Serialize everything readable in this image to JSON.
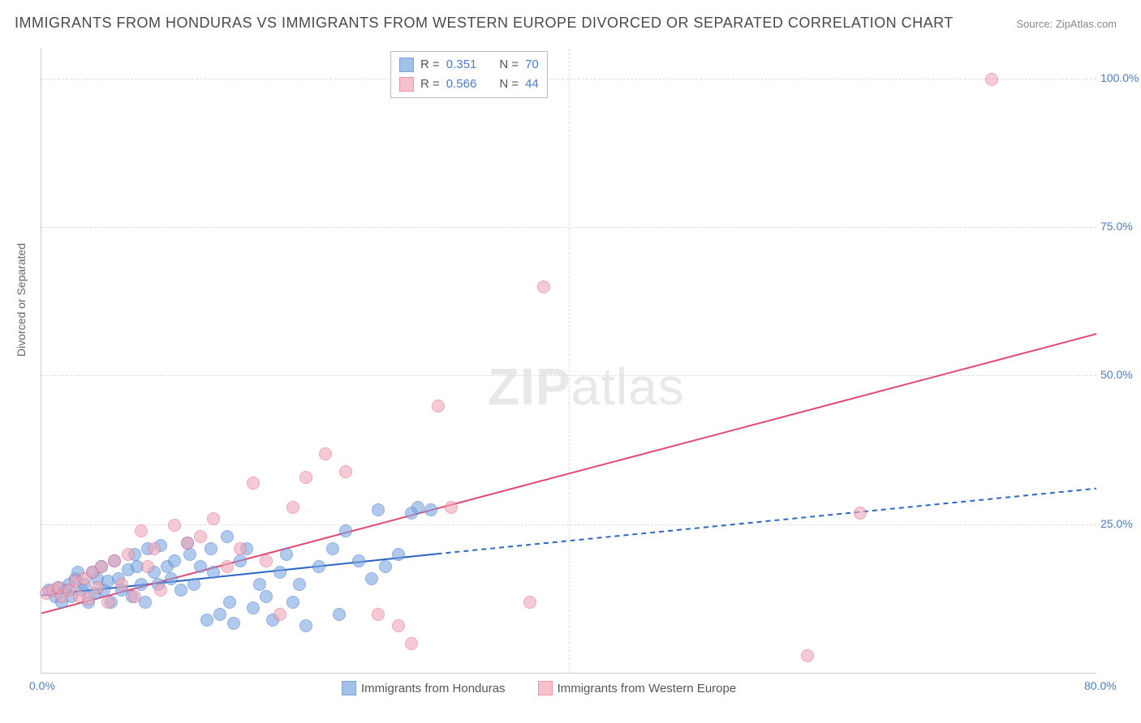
{
  "title": "IMMIGRANTS FROM HONDURAS VS IMMIGRANTS FROM WESTERN EUROPE DIVORCED OR SEPARATED CORRELATION CHART",
  "source": "Source: ZipAtlas.com",
  "watermark_part1": "ZIP",
  "watermark_part2": "atlas",
  "ylabel": "Divorced or Separated",
  "chart": {
    "type": "scatter",
    "xlim": [
      0,
      80
    ],
    "ylim": [
      0,
      105
    ],
    "xticks": [
      {
        "v": 0,
        "l": "0.0%"
      },
      {
        "v": 80,
        "l": "80.0%"
      }
    ],
    "yticks": [
      {
        "v": 25,
        "l": "25.0%"
      },
      {
        "v": 50,
        "l": "50.0%"
      },
      {
        "v": 75,
        "l": "75.0%"
      },
      {
        "v": 100,
        "l": "100.0%"
      }
    ],
    "x_gridlines": [
      40
    ],
    "background_color": "#ffffff",
    "grid_color": "#dddddd",
    "series": [
      {
        "name": "Immigrants from Honduras",
        "color_fill": "#7ba7e0",
        "color_stroke": "#4a7bd0",
        "fill_opacity": 0.35,
        "marker_radius": 7,
        "R": "0.351",
        "N": "70",
        "trendline": {
          "x1": 0,
          "y1": 13,
          "x2": 30,
          "y2": 20,
          "color": "#2e66c4",
          "width": 2,
          "dash": "none",
          "ext_x2": 80,
          "ext_y2": 31,
          "ext_dash": "6,5"
        },
        "points": [
          [
            0.5,
            14
          ],
          [
            1,
            13
          ],
          [
            1.2,
            14.5
          ],
          [
            1.5,
            12
          ],
          [
            1.8,
            14
          ],
          [
            2,
            15
          ],
          [
            2.2,
            13
          ],
          [
            2.5,
            16
          ],
          [
            2.7,
            17
          ],
          [
            3,
            14
          ],
          [
            3.2,
            15
          ],
          [
            3.5,
            12
          ],
          [
            3.8,
            17
          ],
          [
            4,
            13.5
          ],
          [
            4.2,
            16
          ],
          [
            4.5,
            18
          ],
          [
            4.7,
            14
          ],
          [
            5,
            15.5
          ],
          [
            5.2,
            12
          ],
          [
            5.5,
            19
          ],
          [
            5.8,
            16
          ],
          [
            6,
            14
          ],
          [
            6.5,
            17.5
          ],
          [
            6.8,
            13
          ],
          [
            7,
            20
          ],
          [
            7.2,
            18
          ],
          [
            7.5,
            15
          ],
          [
            7.8,
            12
          ],
          [
            8,
            21
          ],
          [
            8.5,
            17
          ],
          [
            8.8,
            15
          ],
          [
            9,
            21.5
          ],
          [
            9.5,
            18
          ],
          [
            9.8,
            16
          ],
          [
            10,
            19
          ],
          [
            10.5,
            14
          ],
          [
            11,
            22
          ],
          [
            11.2,
            20
          ],
          [
            11.5,
            15
          ],
          [
            12,
            18
          ],
          [
            12.5,
            9
          ],
          [
            12.8,
            21
          ],
          [
            13,
            17
          ],
          [
            13.5,
            10
          ],
          [
            14,
            23
          ],
          [
            14.2,
            12
          ],
          [
            14.5,
            8.5
          ],
          [
            15,
            19
          ],
          [
            15.5,
            21
          ],
          [
            16,
            11
          ],
          [
            16.5,
            15
          ],
          [
            17,
            13
          ],
          [
            17.5,
            9
          ],
          [
            18,
            17
          ],
          [
            18.5,
            20
          ],
          [
            19,
            12
          ],
          [
            19.5,
            15
          ],
          [
            20,
            8
          ],
          [
            21,
            18
          ],
          [
            22,
            21
          ],
          [
            22.5,
            10
          ],
          [
            23,
            24
          ],
          [
            24,
            19
          ],
          [
            25,
            16
          ],
          [
            25.5,
            27.5
          ],
          [
            26,
            18
          ],
          [
            27,
            20
          ],
          [
            28,
            27
          ],
          [
            28.5,
            28
          ],
          [
            29.5,
            27.5
          ]
        ]
      },
      {
        "name": "Immigrants from Western Europe",
        "color_fill": "#f0a8b8",
        "color_stroke": "#e56b8a",
        "fill_opacity": 0.35,
        "marker_radius": 7,
        "R": "0.566",
        "N": "44",
        "trendline": {
          "x1": 0,
          "y1": 10,
          "x2": 80,
          "y2": 57,
          "color": "#e04a73",
          "width": 2,
          "dash": "none"
        },
        "points": [
          [
            0.3,
            13.5
          ],
          [
            0.8,
            14
          ],
          [
            1.2,
            14.5
          ],
          [
            1.5,
            13
          ],
          [
            2,
            14
          ],
          [
            2.5,
            15.5
          ],
          [
            2.8,
            13
          ],
          [
            3.2,
            16
          ],
          [
            3.5,
            12.5
          ],
          [
            3.8,
            17
          ],
          [
            4.2,
            14.5
          ],
          [
            4.5,
            18
          ],
          [
            5,
            12
          ],
          [
            5.5,
            19
          ],
          [
            6,
            15
          ],
          [
            6.5,
            20
          ],
          [
            7,
            13
          ],
          [
            7.5,
            24
          ],
          [
            8,
            18
          ],
          [
            8.5,
            21
          ],
          [
            9,
            14
          ],
          [
            10,
            25
          ],
          [
            11,
            22
          ],
          [
            12,
            23
          ],
          [
            13,
            26
          ],
          [
            14,
            18
          ],
          [
            15,
            21
          ],
          [
            16,
            32
          ],
          [
            17,
            19
          ],
          [
            18,
            10
          ],
          [
            19,
            28
          ],
          [
            20,
            33
          ],
          [
            21.5,
            37
          ],
          [
            23,
            34
          ],
          [
            25.5,
            10
          ],
          [
            27,
            8
          ],
          [
            28,
            5
          ],
          [
            30,
            45
          ],
          [
            31,
            28
          ],
          [
            37,
            12
          ],
          [
            38,
            65
          ],
          [
            58,
            3
          ],
          [
            62,
            27
          ],
          [
            72,
            100
          ]
        ]
      }
    ]
  },
  "legend_labels": {
    "R": "R = ",
    "N": "N = "
  },
  "bottom_legend_series1": "Immigrants from Honduras",
  "bottom_legend_series2": "Immigrants from Western Europe"
}
